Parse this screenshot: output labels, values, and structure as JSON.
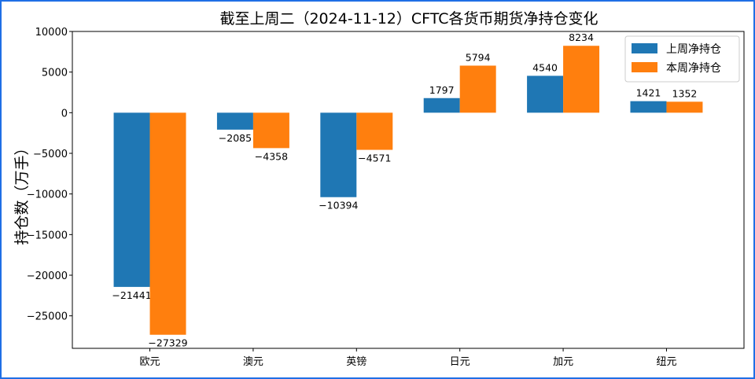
{
  "chart_data": {
    "type": "bar",
    "title": "截至上周二（2024-11-12）CFTC各货币期货净持仓变化",
    "ylabel": "持仓数（万手）",
    "xlabel": "",
    "categories": [
      "欧元",
      "澳元",
      "英镑",
      "日元",
      "加元",
      "纽元"
    ],
    "series": [
      {
        "name": "上周净持仓",
        "color": "#1f77b4",
        "values": [
          -21441,
          -2085,
          -10394,
          1797,
          4540,
          1421
        ]
      },
      {
        "name": "本周净持仓",
        "color": "#ff7f0e",
        "values": [
          -27329,
          -4358,
          -4571,
          5794,
          8234,
          1352
        ]
      }
    ],
    "ylim": [
      -29000,
      10000
    ],
    "yticks": [
      10000,
      5000,
      0,
      -5000,
      -10000,
      -15000,
      -20000,
      -25000
    ],
    "yticks_labels": [
      "10000",
      "5000",
      "0",
      "−5000",
      "−10000",
      "−15000",
      "−20000",
      "−25000"
    ],
    "data_labels": [
      [
        "−21441",
        "−2085",
        "−10394",
        "1797",
        "4540",
        "1421"
      ],
      [
        "−27329",
        "−4358",
        "−4571",
        "5794",
        "8234",
        "1352"
      ]
    ],
    "legend_position": "top-right",
    "grid": false,
    "frame_color": "#1f6fe5"
  }
}
